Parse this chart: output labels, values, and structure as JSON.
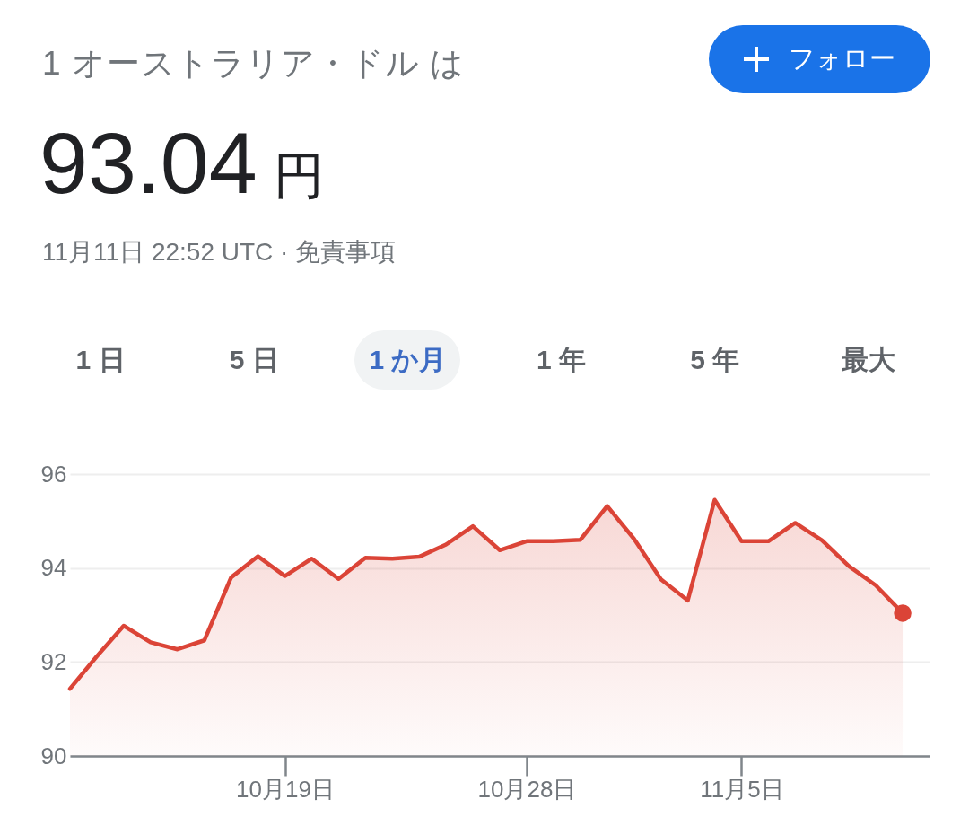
{
  "chart_data": {
    "type": "area",
    "title": "1 オーストラリア・ドル は",
    "subtitle": "93.04 円",
    "annotations": [
      "11月11日 22:52 UTC · 免責事項",
      "フォロー",
      "1 日",
      "5 日",
      "1 か月",
      "1 年",
      "5 年",
      "最大"
    ],
    "x": [
      "--10-11",
      "--10-12",
      "--10-13",
      "--10-14",
      "--10-15",
      "--10-16",
      "--10-17",
      "--10-18",
      "--10-19",
      "--10-20",
      "--10-21",
      "--10-22",
      "--10-23",
      "--10-24",
      "--10-25",
      "--10-26",
      "--10-27",
      "--10-28",
      "--10-29",
      "--10-30",
      "--10-31",
      "--11-01",
      "--11-02",
      "--11-03",
      "--11-04",
      "--11-05",
      "--11-06",
      "--11-07",
      "--11-08",
      "--11-09",
      "--11-10",
      "--11-11"
    ],
    "series": [
      {
        "type": "area",
        "color": "#db4437",
        "values": [
          91.43,
          92.12,
          92.77,
          92.42,
          92.27,
          92.46,
          93.8,
          94.25,
          93.83,
          94.2,
          93.77,
          94.22,
          94.2,
          94.24,
          94.5,
          94.89,
          94.38,
          94.57,
          94.57,
          94.6,
          95.32,
          94.62,
          93.76,
          93.31,
          95.45,
          94.57,
          94.57,
          94.96,
          94.59,
          94.04,
          93.63,
          93.04
        ]
      },
      {
        "type": "scatter",
        "color": "#db4437",
        "x": [
          "--11-11"
        ],
        "values": [
          93.04
        ]
      }
    ],
    "xlim": [
      "--10-11",
      "--11-12"
    ],
    "xticks": [
      {
        "value": "--10-19",
        "label": "10月19日"
      },
      {
        "value": "--10-28",
        "label": "10月28日"
      },
      {
        "value": "--11-05",
        "label": "11月5日"
      }
    ],
    "ylim": [
      90,
      96
    ],
    "yticks": [
      90,
      92,
      94,
      96
    ],
    "grid": "y"
  }
}
